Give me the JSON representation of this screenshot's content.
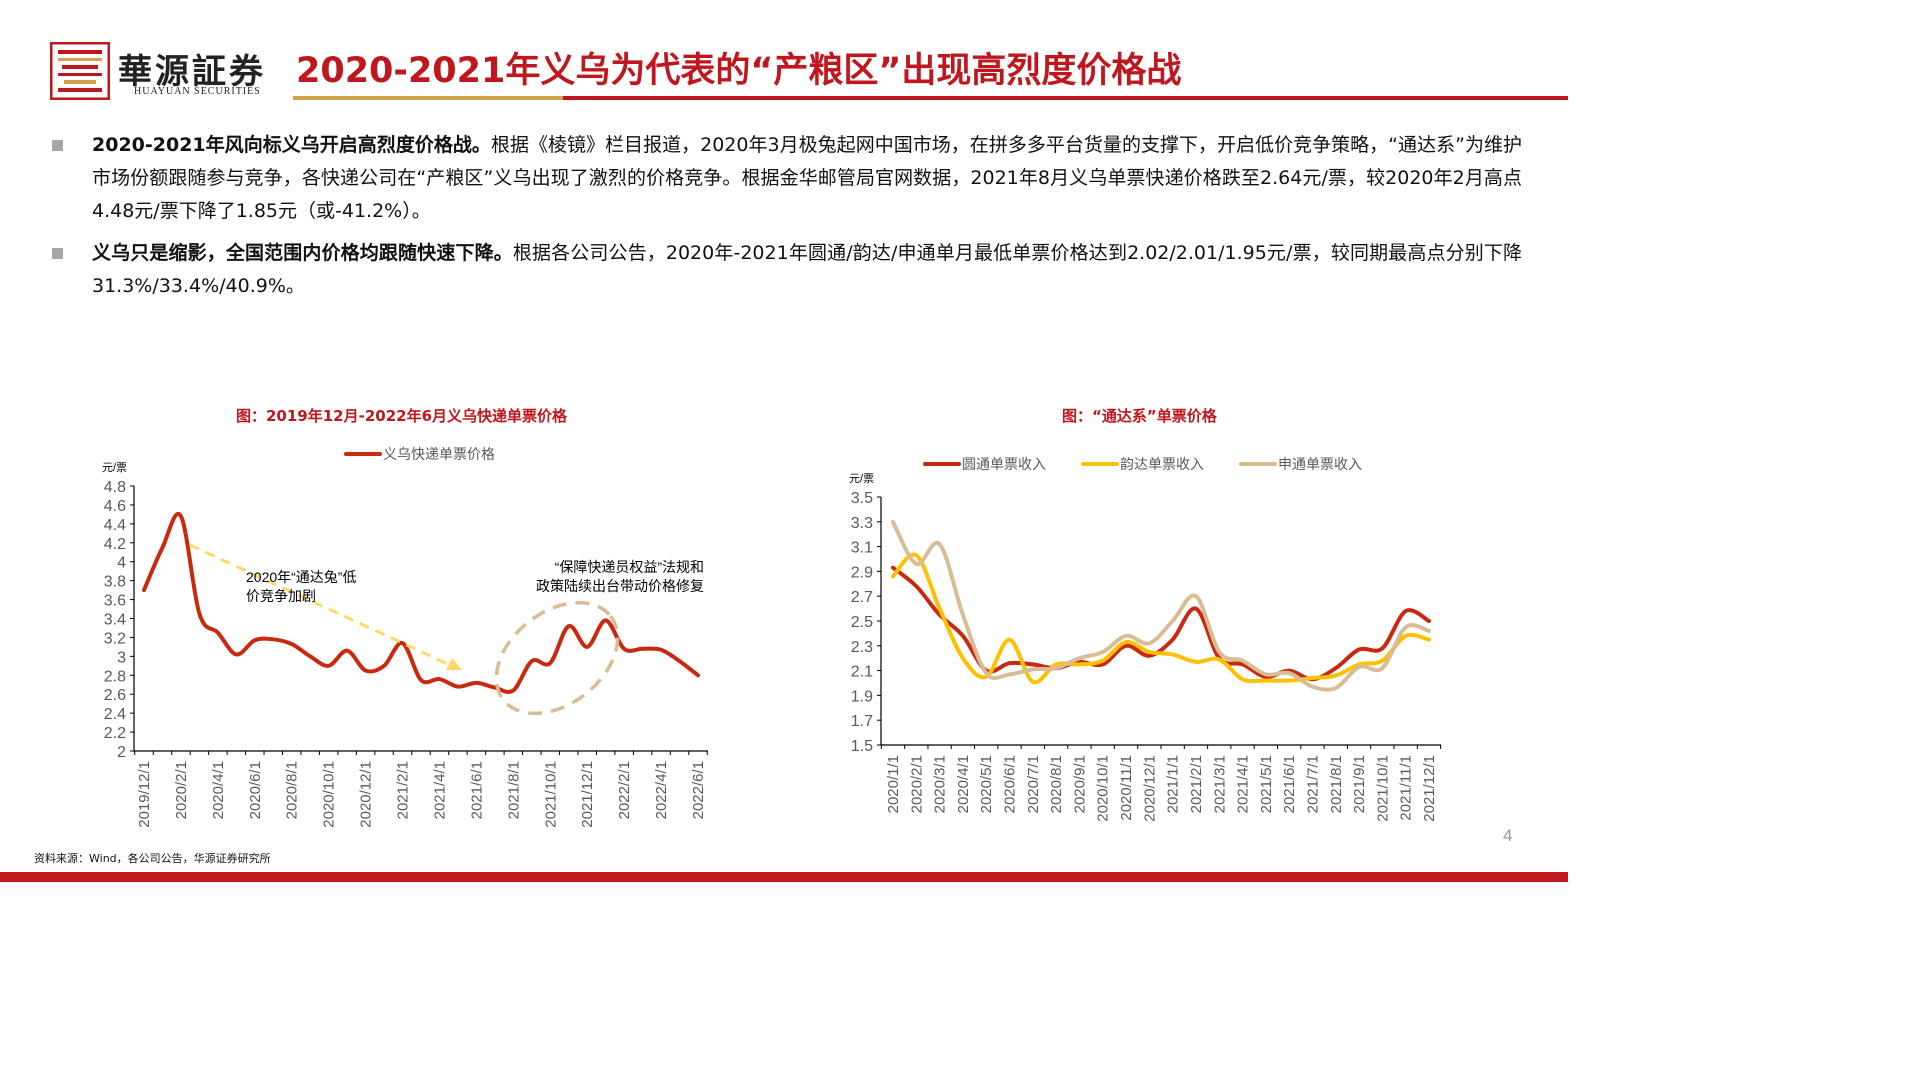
{
  "header": {
    "logo_text": "華源証券",
    "logo_sub": "HUAYUAN SECURITIES",
    "title": "2020-2021年义乌为代表的“产粮区”出现高烈度价格战",
    "colors": {
      "brand_red": "#c0161d",
      "gold": "#d2a24c"
    }
  },
  "paragraphs": [
    {
      "bold": "2020-2021年风向标义乌开启高烈度价格战。",
      "text": "根据《棱镜》栏目报道，2020年3月极兔起网中国市场，在拼多多平台货量的支撑下，开启低价竞争策略，“通达系”为维护市场份额跟随参与竞争，各快递公司在“产粮区”义乌出现了激烈的价格竞争。根据金华邮管局官网数据，2021年8月义乌单票快递价格跌至2.64元/票，较2020年2月高点4.48元/票下降了1.85元（或-41.2%）。"
    },
    {
      "bold": "义乌只是缩影，全国范围内价格均跟随快速下降。",
      "text": "根据各公司公告，2020年-2021年圆通/韵达/申通单月最低单票价格达到2.02/2.01/1.95元/票，较同期最高点分别下降31.3%/33.4%/40.9%。"
    }
  ],
  "chart_data": [
    {
      "type": "line",
      "title": "图：2019年12月-2022年6月义乌快递单票价格",
      "ylabel": "元/票",
      "ylim": [
        2,
        4.8
      ],
      "yticks": [
        2,
        2.2,
        2.4,
        2.6,
        2.8,
        3,
        3.2,
        3.4,
        3.6,
        3.8,
        4,
        4.2,
        4.4,
        4.6,
        4.8
      ],
      "x": [
        "2019/12/1",
        "2020/1/1",
        "2020/2/1",
        "2020/3/1",
        "2020/4/1",
        "2020/5/1",
        "2020/6/1",
        "2020/7/1",
        "2020/8/1",
        "2020/9/1",
        "2020/10/1",
        "2020/11/1",
        "2020/12/1",
        "2021/1/1",
        "2021/2/1",
        "2021/3/1",
        "2021/4/1",
        "2021/5/1",
        "2021/6/1",
        "2021/7/1",
        "2021/8/1",
        "2021/9/1",
        "2021/10/1",
        "2021/11/1",
        "2021/12/1",
        "2022/1/1",
        "2022/2/1",
        "2022/3/1",
        "2022/4/1",
        "2022/5/1",
        "2022/6/1"
      ],
      "xtick_labels": [
        "2019/12/1",
        "2020/2/1",
        "2020/4/1",
        "2020/6/1",
        "2020/8/1",
        "2020/10/1",
        "2020/12/1",
        "2021/2/1",
        "2021/4/1",
        "2021/6/1",
        "2021/8/1",
        "2021/10/1",
        "2021/12/1",
        "2022/2/1",
        "2022/4/1",
        "2022/6/1"
      ],
      "legend": "top",
      "series": [
        {
          "name": "义乌快递单票价格",
          "color": "#c8290f",
          "values": [
            3.7,
            4.15,
            4.48,
            3.45,
            3.25,
            3.02,
            3.17,
            3.18,
            3.13,
            3.0,
            2.9,
            3.06,
            2.85,
            2.9,
            3.14,
            2.75,
            2.76,
            2.68,
            2.72,
            2.67,
            2.64,
            2.95,
            2.93,
            3.32,
            3.1,
            3.38,
            3.08,
            3.08,
            3.07,
            2.95,
            2.8
          ]
        }
      ],
      "annotations": [
        "2020年“通达兔”低价竞争加剧",
        "“保障快递员权益”法规和政策陆续出台带动价格修复"
      ]
    },
    {
      "type": "line",
      "title": "图：“通达系”单票价格",
      "ylabel": "元/票",
      "ylim": [
        1.5,
        3.5
      ],
      "yticks": [
        1.5,
        1.7,
        1.9,
        2.1,
        2.3,
        2.5,
        2.7,
        2.9,
        3.1,
        3.3,
        3.5
      ],
      "x": [
        "2020/1/1",
        "2020/2/1",
        "2020/3/1",
        "2020/4/1",
        "2020/5/1",
        "2020/6/1",
        "2020/7/1",
        "2020/8/1",
        "2020/9/1",
        "2020/10/1",
        "2020/11/1",
        "2020/12/1",
        "2021/1/1",
        "2021/2/1",
        "2021/3/1",
        "2021/4/1",
        "2021/5/1",
        "2021/6/1",
        "2021/7/1",
        "2021/8/1",
        "2021/9/1",
        "2021/10/1",
        "2021/11/1",
        "2021/12/1"
      ],
      "legend": "top",
      "series": [
        {
          "name": "圆通单票收入",
          "color": "#c8290f",
          "values": [
            2.93,
            2.78,
            2.55,
            2.38,
            2.1,
            2.16,
            2.15,
            2.12,
            2.17,
            2.15,
            2.3,
            2.22,
            2.35,
            2.6,
            2.2,
            2.15,
            2.05,
            2.1,
            2.03,
            2.12,
            2.27,
            2.28,
            2.58,
            2.5
          ]
        },
        {
          "name": "韵达单票收入",
          "color": "#ffc000",
          "values": [
            2.86,
            3.03,
            2.6,
            2.2,
            2.05,
            2.35,
            2.01,
            2.15,
            2.15,
            2.18,
            2.33,
            2.25,
            2.23,
            2.17,
            2.19,
            2.03,
            2.02,
            2.02,
            2.04,
            2.06,
            2.15,
            2.18,
            2.38,
            2.35
          ]
        },
        {
          "name": "申通单票收入",
          "color": "#d9bc94",
          "values": [
            3.3,
            2.96,
            3.12,
            2.55,
            2.08,
            2.07,
            2.11,
            2.12,
            2.2,
            2.25,
            2.38,
            2.32,
            2.5,
            2.7,
            2.25,
            2.18,
            2.07,
            2.08,
            1.97,
            1.96,
            2.13,
            2.12,
            2.45,
            2.42
          ]
        }
      ]
    }
  ],
  "footer": {
    "source": "资料来源：Wind，各公司公告，华源证券研究所",
    "page": "4"
  }
}
